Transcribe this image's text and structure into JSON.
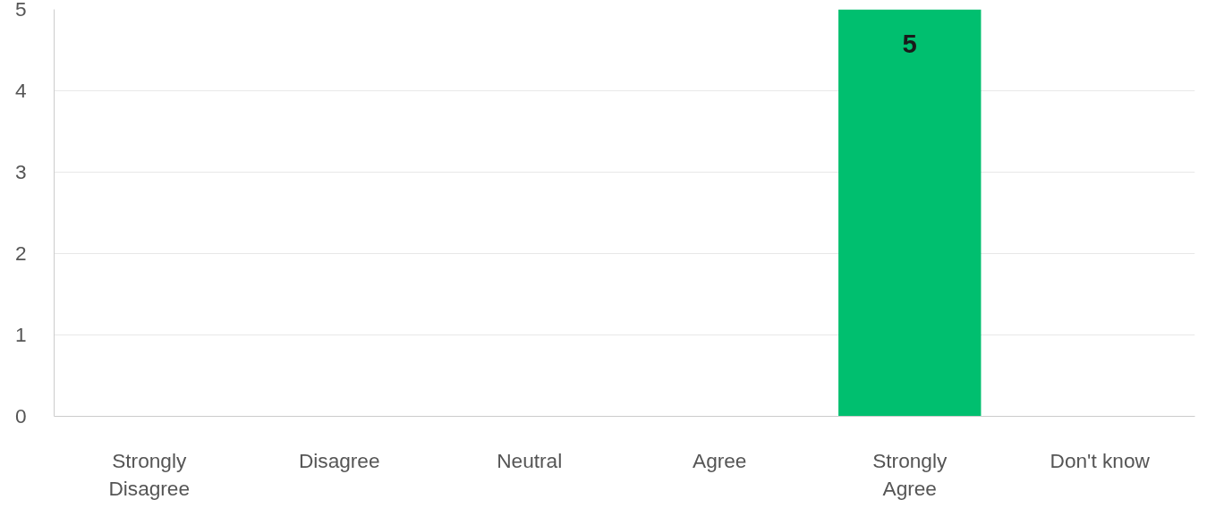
{
  "chart_data": {
    "type": "bar",
    "categories": [
      "Strongly Disagree",
      "Disagree",
      "Neutral",
      "Agree",
      "Strongly Agree",
      "Don't know"
    ],
    "values": [
      0,
      0,
      0,
      0,
      5,
      0
    ],
    "color": "#00bf6f",
    "value_labels": [
      null,
      null,
      null,
      null,
      "5",
      null
    ],
    "ylim": [
      0,
      5
    ],
    "yticks": [
      0,
      1,
      2,
      3,
      4,
      5
    ],
    "grid": "y"
  }
}
